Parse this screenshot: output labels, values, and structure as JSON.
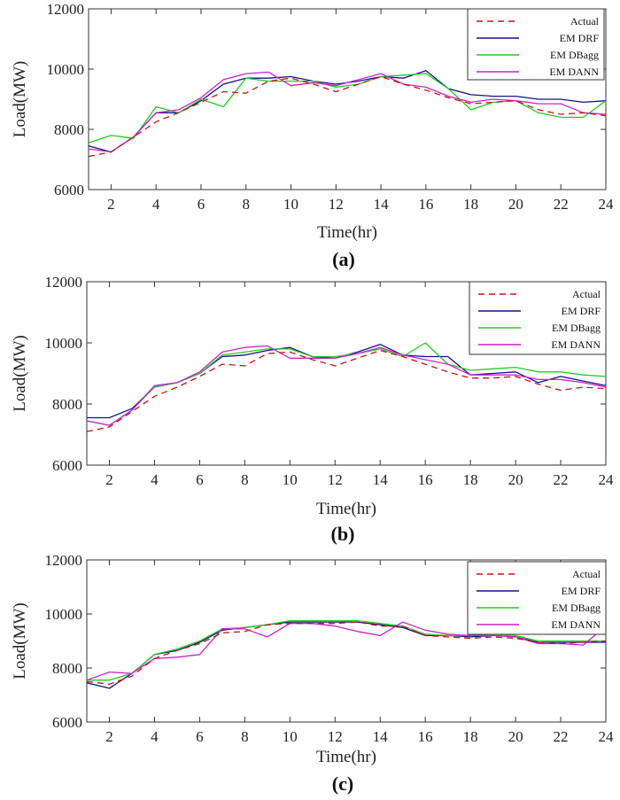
{
  "figure": {
    "panel_captions": [
      "(a)",
      "(b)",
      "(c)"
    ]
  },
  "colors": {
    "Actual": "#cc1111",
    "EMDRF": "#11118a",
    "EMDBagg": "#22cc22",
    "EMDANN": "#cc22cc"
  },
  "chart_data": [
    {
      "type": "line",
      "panel": "(a)",
      "xlabel": "Time(hr)",
      "ylabel": "Load(MW)",
      "xlim": [
        1,
        24
      ],
      "ylim": [
        6000,
        12000
      ],
      "xticks": [
        2,
        4,
        6,
        8,
        10,
        12,
        14,
        16,
        18,
        20,
        22,
        24
      ],
      "yticks": [
        6000,
        8000,
        10000,
        12000
      ],
      "x": [
        1,
        2,
        3,
        4,
        5,
        6,
        7,
        8,
        9,
        10,
        11,
        12,
        13,
        14,
        15,
        16,
        17,
        18,
        19,
        20,
        21,
        22,
        23,
        24
      ],
      "series": [
        {
          "name": "Actual",
          "legend": "Actual",
          "dashed": true,
          "values": [
            7100,
            7250,
            7750,
            8250,
            8550,
            8900,
            9250,
            9200,
            9600,
            9700,
            9500,
            9250,
            9500,
            9750,
            9500,
            9300,
            9050,
            8850,
            8900,
            8950,
            8650,
            8500,
            8550,
            8450
          ]
        },
        {
          "name": "EMDRF",
          "legend": "EM DRF",
          "dashed": false,
          "values": [
            7450,
            7250,
            7750,
            8550,
            8550,
            8950,
            9500,
            9700,
            9700,
            9750,
            9600,
            9500,
            9600,
            9750,
            9700,
            9950,
            9350,
            9150,
            9100,
            9100,
            9000,
            9000,
            8900,
            8950
          ]
        },
        {
          "name": "EMDBagg",
          "legend": "EM DBagg",
          "dashed": false,
          "values": [
            7550,
            7800,
            7700,
            8750,
            8550,
            9000,
            8750,
            9700,
            9600,
            9600,
            9600,
            9400,
            9500,
            9750,
            9800,
            9850,
            9350,
            8650,
            8900,
            8950,
            8550,
            8400,
            8400,
            8950
          ]
        },
        {
          "name": "EMDANN",
          "legend": "EM DANN",
          "dashed": false,
          "values": [
            7350,
            7250,
            7750,
            8550,
            8650,
            9050,
            9650,
            9850,
            9900,
            9450,
            9550,
            9450,
            9650,
            9850,
            9500,
            9400,
            9100,
            8900,
            9000,
            8950,
            8850,
            8850,
            8550,
            8500
          ]
        }
      ]
    },
    {
      "type": "line",
      "panel": "(b)",
      "xlabel": "Time(hr)",
      "ylabel": "Load(MW)",
      "xlim": [
        1,
        24
      ],
      "ylim": [
        6000,
        12000
      ],
      "xticks": [
        2,
        4,
        6,
        8,
        10,
        12,
        14,
        16,
        18,
        20,
        22,
        24
      ],
      "yticks": [
        6000,
        8000,
        10000,
        12000
      ],
      "x": [
        1,
        2,
        3,
        4,
        5,
        6,
        7,
        8,
        9,
        10,
        11,
        12,
        13,
        14,
        15,
        16,
        17,
        18,
        19,
        20,
        21,
        22,
        23,
        24
      ],
      "series": [
        {
          "name": "Actual",
          "legend": "Actual",
          "dashed": true,
          "values": [
            7100,
            7250,
            7750,
            8250,
            8550,
            8900,
            9300,
            9250,
            9650,
            9700,
            9450,
            9250,
            9500,
            9750,
            9550,
            9300,
            9050,
            8850,
            8850,
            8900,
            8650,
            8450,
            8550,
            8500
          ]
        },
        {
          "name": "EMDRF",
          "legend": "EM DRF",
          "dashed": false,
          "values": [
            7550,
            7550,
            7850,
            8550,
            8700,
            9000,
            9550,
            9600,
            9750,
            9850,
            9550,
            9500,
            9700,
            9950,
            9600,
            9550,
            9550,
            8950,
            9000,
            9050,
            8700,
            8900,
            8750,
            8600
          ]
        },
        {
          "name": "EMDBagg",
          "legend": "EM DBagg",
          "dashed": false,
          "values": [
            7450,
            7300,
            7800,
            8550,
            8700,
            9000,
            9600,
            9700,
            9800,
            9800,
            9550,
            9550,
            9650,
            9800,
            9550,
            10000,
            9300,
            9100,
            9150,
            9200,
            9050,
            9050,
            8950,
            8900
          ]
        },
        {
          "name": "EMDANN",
          "legend": "EM DANN",
          "dashed": false,
          "values": [
            7450,
            7300,
            7800,
            8600,
            8700,
            9050,
            9700,
            9850,
            9900,
            9500,
            9500,
            9500,
            9650,
            9850,
            9600,
            9450,
            9300,
            8950,
            8950,
            8950,
            8800,
            8800,
            8700,
            8550
          ]
        }
      ]
    },
    {
      "type": "line",
      "panel": "(c)",
      "xlabel": "Time(hr)",
      "ylabel": "Load(MW)",
      "xlim": [
        1,
        24
      ],
      "ylim": [
        6000,
        12000
      ],
      "xticks": [
        2,
        4,
        6,
        8,
        10,
        12,
        14,
        16,
        18,
        20,
        22,
        24
      ],
      "yticks": [
        6000,
        8000,
        10000,
        12000
      ],
      "x": [
        1,
        2,
        3,
        4,
        5,
        6,
        7,
        8,
        9,
        10,
        11,
        12,
        13,
        14,
        15,
        16,
        17,
        18,
        19,
        20,
        21,
        22,
        23,
        24
      ],
      "series": [
        {
          "name": "Actual",
          "legend": "Actual",
          "dashed": true,
          "values": [
            7500,
            7400,
            7700,
            8350,
            8650,
            8900,
            9300,
            9350,
            9600,
            9650,
            9650,
            9650,
            9700,
            9550,
            9550,
            9200,
            9150,
            9100,
            9150,
            9100,
            8950,
            8900,
            8950,
            9000
          ]
        },
        {
          "name": "EMDRF",
          "legend": "EM DRF",
          "dashed": false,
          "values": [
            7450,
            7250,
            7800,
            8500,
            8650,
            8950,
            9400,
            9500,
            9600,
            9700,
            9700,
            9700,
            9700,
            9600,
            9500,
            9200,
            9200,
            9150,
            9200,
            9150,
            8950,
            8950,
            8950,
            8950
          ]
        },
        {
          "name": "EMDBagg",
          "legend": "EM DBagg",
          "dashed": false,
          "values": [
            7550,
            7550,
            7800,
            8500,
            8700,
            9000,
            9450,
            9500,
            9600,
            9750,
            9750,
            9750,
            9750,
            9650,
            9550,
            9250,
            9200,
            9200,
            9250,
            9200,
            9000,
            9000,
            9000,
            9000
          ]
        },
        {
          "name": "EMDANN",
          "legend": "EM DANN",
          "dashed": false,
          "values": [
            7550,
            7850,
            7800,
            8350,
            8400,
            8500,
            9450,
            9450,
            9150,
            9650,
            9650,
            9550,
            9350,
            9200,
            9700,
            9400,
            9250,
            9200,
            9200,
            9150,
            8900,
            8900,
            8850,
            9550
          ]
        }
      ]
    }
  ]
}
